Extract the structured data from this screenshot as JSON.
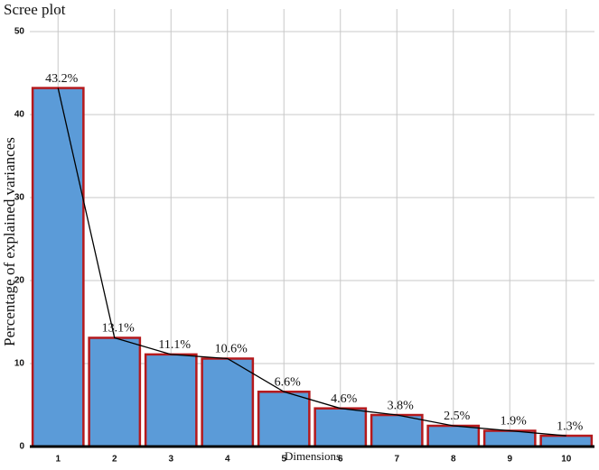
{
  "chart_data": {
    "type": "bar",
    "title": "Scree plot",
    "x_label": "Dimensions",
    "y_label": "Percentage of explained variances",
    "categories": [
      "1",
      "2",
      "3",
      "4",
      "5",
      "6",
      "7",
      "8",
      "9",
      "10"
    ],
    "values": [
      43.2,
      13.1,
      11.1,
      10.6,
      6.6,
      4.6,
      3.8,
      2.5,
      1.9,
      1.3
    ],
    "value_labels": [
      "43.2%",
      "13.1%",
      "11.1%",
      "10.6%",
      "6.6%",
      "4.6%",
      "3.8%",
      "2.5%",
      "1.9%",
      "1.3%"
    ],
    "color": "#5b9bd8",
    "edge_color": "#b5191c",
    "line_color": "#000000",
    "ylim": [
      0,
      50
    ],
    "yticks": [
      0,
      10,
      20,
      30,
      40,
      50
    ],
    "grid": true
  }
}
